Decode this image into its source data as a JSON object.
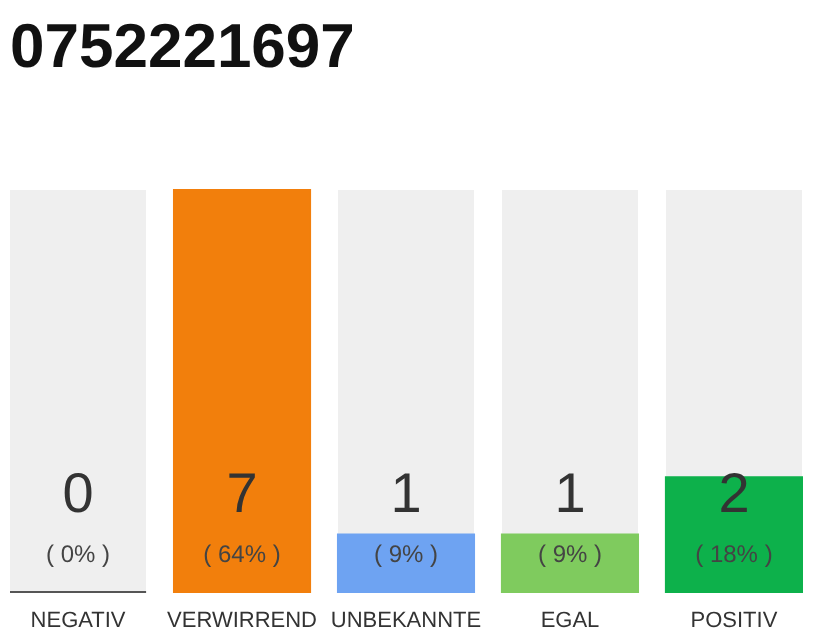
{
  "chart_data": {
    "type": "bar",
    "title": "0752221697",
    "categories": [
      "NEGATIV",
      "VERWIRREND",
      "UNBEKANNTE",
      "EGAL",
      "POSITIV"
    ],
    "values": [
      0,
      7,
      1,
      1,
      2
    ],
    "colors": [
      "#555555",
      "#f27f0c",
      "#6ea3f2",
      "#7fcb5e",
      "#0db14b"
    ],
    "data_labels": true,
    "annotations": [
      "( 0% )",
      "( 64% )",
      "( 9% )",
      "( 9% )",
      "( 18% )"
    ],
    "grid": false
  }
}
